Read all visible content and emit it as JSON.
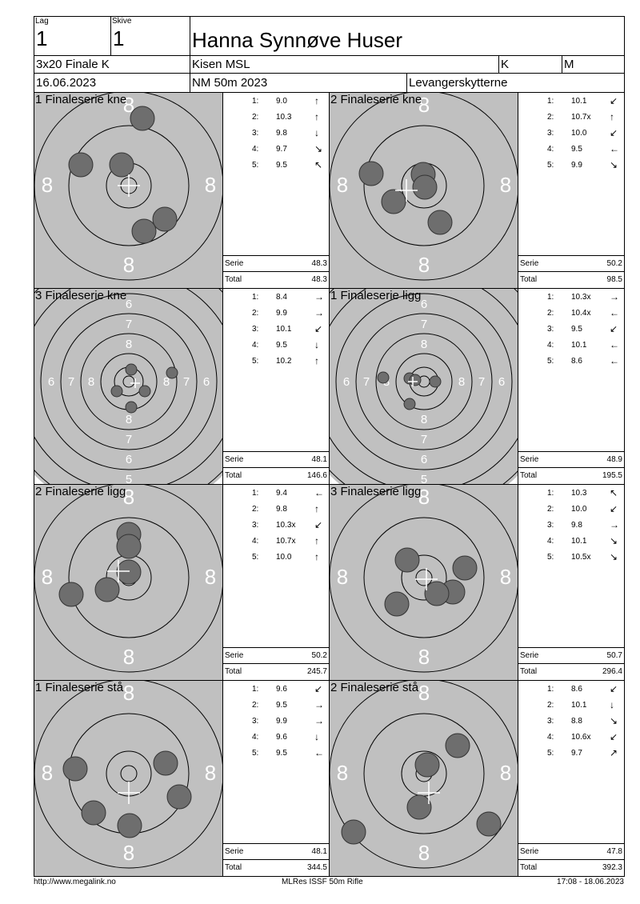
{
  "header": {
    "lag_label": "Lag",
    "lag": "1",
    "skive_label": "Skive",
    "skive": "1",
    "name": "Hanna Synnøve Huser",
    "class": "3x20 Finale K",
    "club": "Kisen MSL",
    "gender": "K",
    "category": "M",
    "date": "16.06.2023",
    "event": "NM 50m 2023",
    "organizer": "Levangerskytterne"
  },
  "labels": {
    "serie": "Serie",
    "total": "Total"
  },
  "colors": {
    "target": "#c0c0c0",
    "shot": "#6e6e6e"
  },
  "panels": [
    {
      "title": "1 Finaleserie kne",
      "shots": [
        {
          "n": "1:",
          "v": "9.0",
          "dir": "↑"
        },
        {
          "n": "2:",
          "v": "10.3",
          "dir": "↑"
        },
        {
          "n": "3:",
          "v": "9.8",
          "dir": "↓"
        },
        {
          "n": "4:",
          "v": "9.7",
          "dir": "↘"
        },
        {
          "n": "5:",
          "v": "9.5",
          "dir": "↖"
        }
      ],
      "serie": "48.3",
      "total": "48.3",
      "view": "zoom"
    },
    {
      "title": "2 Finaleserie kne",
      "shots": [
        {
          "n": "1:",
          "v": "10.1",
          "dir": "↙"
        },
        {
          "n": "2:",
          "v": "10.7x",
          "dir": "↑"
        },
        {
          "n": "3:",
          "v": "10.0",
          "dir": "↙"
        },
        {
          "n": "4:",
          "v": "9.5",
          "dir": "←"
        },
        {
          "n": "5:",
          "v": "9.9",
          "dir": "↘"
        }
      ],
      "serie": "50.2",
      "total": "98.5",
      "view": "zoom"
    },
    {
      "title": "3 Finaleserie kne",
      "shots": [
        {
          "n": "1:",
          "v": "8.4",
          "dir": "→"
        },
        {
          "n": "2:",
          "v": "9.9",
          "dir": "→"
        },
        {
          "n": "3:",
          "v": "10.1",
          "dir": "↙"
        },
        {
          "n": "4:",
          "v": "9.5",
          "dir": "↓"
        },
        {
          "n": "5:",
          "v": "10.2",
          "dir": "↑"
        }
      ],
      "serie": "48.1",
      "total": "146.6",
      "view": "wide"
    },
    {
      "title": "1 Finaleserie ligg",
      "shots": [
        {
          "n": "1:",
          "v": "10.3x",
          "dir": "→"
        },
        {
          "n": "2:",
          "v": "10.4x",
          "dir": "←"
        },
        {
          "n": "3:",
          "v": "9.5",
          "dir": "↙"
        },
        {
          "n": "4:",
          "v": "10.1",
          "dir": "←"
        },
        {
          "n": "5:",
          "v": "8.6",
          "dir": "←"
        }
      ],
      "serie": "48.9",
      "total": "195.5",
      "view": "wide"
    },
    {
      "title": "2 Finaleserie ligg",
      "shots": [
        {
          "n": "1:",
          "v": "9.4",
          "dir": "←"
        },
        {
          "n": "2:",
          "v": "9.8",
          "dir": "↑"
        },
        {
          "n": "3:",
          "v": "10.3x",
          "dir": "↙"
        },
        {
          "n": "4:",
          "v": "10.7x",
          "dir": "↑"
        },
        {
          "n": "5:",
          "v": "10.0",
          "dir": "↑"
        }
      ],
      "serie": "50.2",
      "total": "245.7",
      "view": "zoom"
    },
    {
      "title": "3 Finaleserie ligg",
      "shots": [
        {
          "n": "1:",
          "v": "10.3",
          "dir": "↖"
        },
        {
          "n": "2:",
          "v": "10.0",
          "dir": "↙"
        },
        {
          "n": "3:",
          "v": "9.8",
          "dir": "→"
        },
        {
          "n": "4:",
          "v": "10.1",
          "dir": "↘"
        },
        {
          "n": "5:",
          "v": "10.5x",
          "dir": "↘"
        }
      ],
      "serie": "50.7",
      "total": "296.4",
      "view": "zoom"
    },
    {
      "title": "1 Finaleserie stå",
      "shots": [
        {
          "n": "1:",
          "v": "9.6",
          "dir": "↙"
        },
        {
          "n": "2:",
          "v": "9.5",
          "dir": "→"
        },
        {
          "n": "3:",
          "v": "9.9",
          "dir": "→"
        },
        {
          "n": "4:",
          "v": "9.6",
          "dir": "↓"
        },
        {
          "n": "5:",
          "v": "9.5",
          "dir": "←"
        }
      ],
      "serie": "48.1",
      "total": "344.5",
      "view": "zoom"
    },
    {
      "title": "2 Finaleserie stå",
      "shots": [
        {
          "n": "1:",
          "v": "8.6",
          "dir": "↙"
        },
        {
          "n": "2:",
          "v": "10.1",
          "dir": "↓"
        },
        {
          "n": "3:",
          "v": "8.8",
          "dir": "↘"
        },
        {
          "n": "4:",
          "v": "10.6x",
          "dir": "↙"
        },
        {
          "n": "5:",
          "v": "9.7",
          "dir": "↗"
        }
      ],
      "serie": "47.8",
      "total": "392.3",
      "view": "zoom"
    }
  ],
  "footer": {
    "url": "http://www.megalink.no",
    "software": "MLRes ISSF 50m Rifle",
    "timestamp": "17:08 - 18.06.2023"
  }
}
